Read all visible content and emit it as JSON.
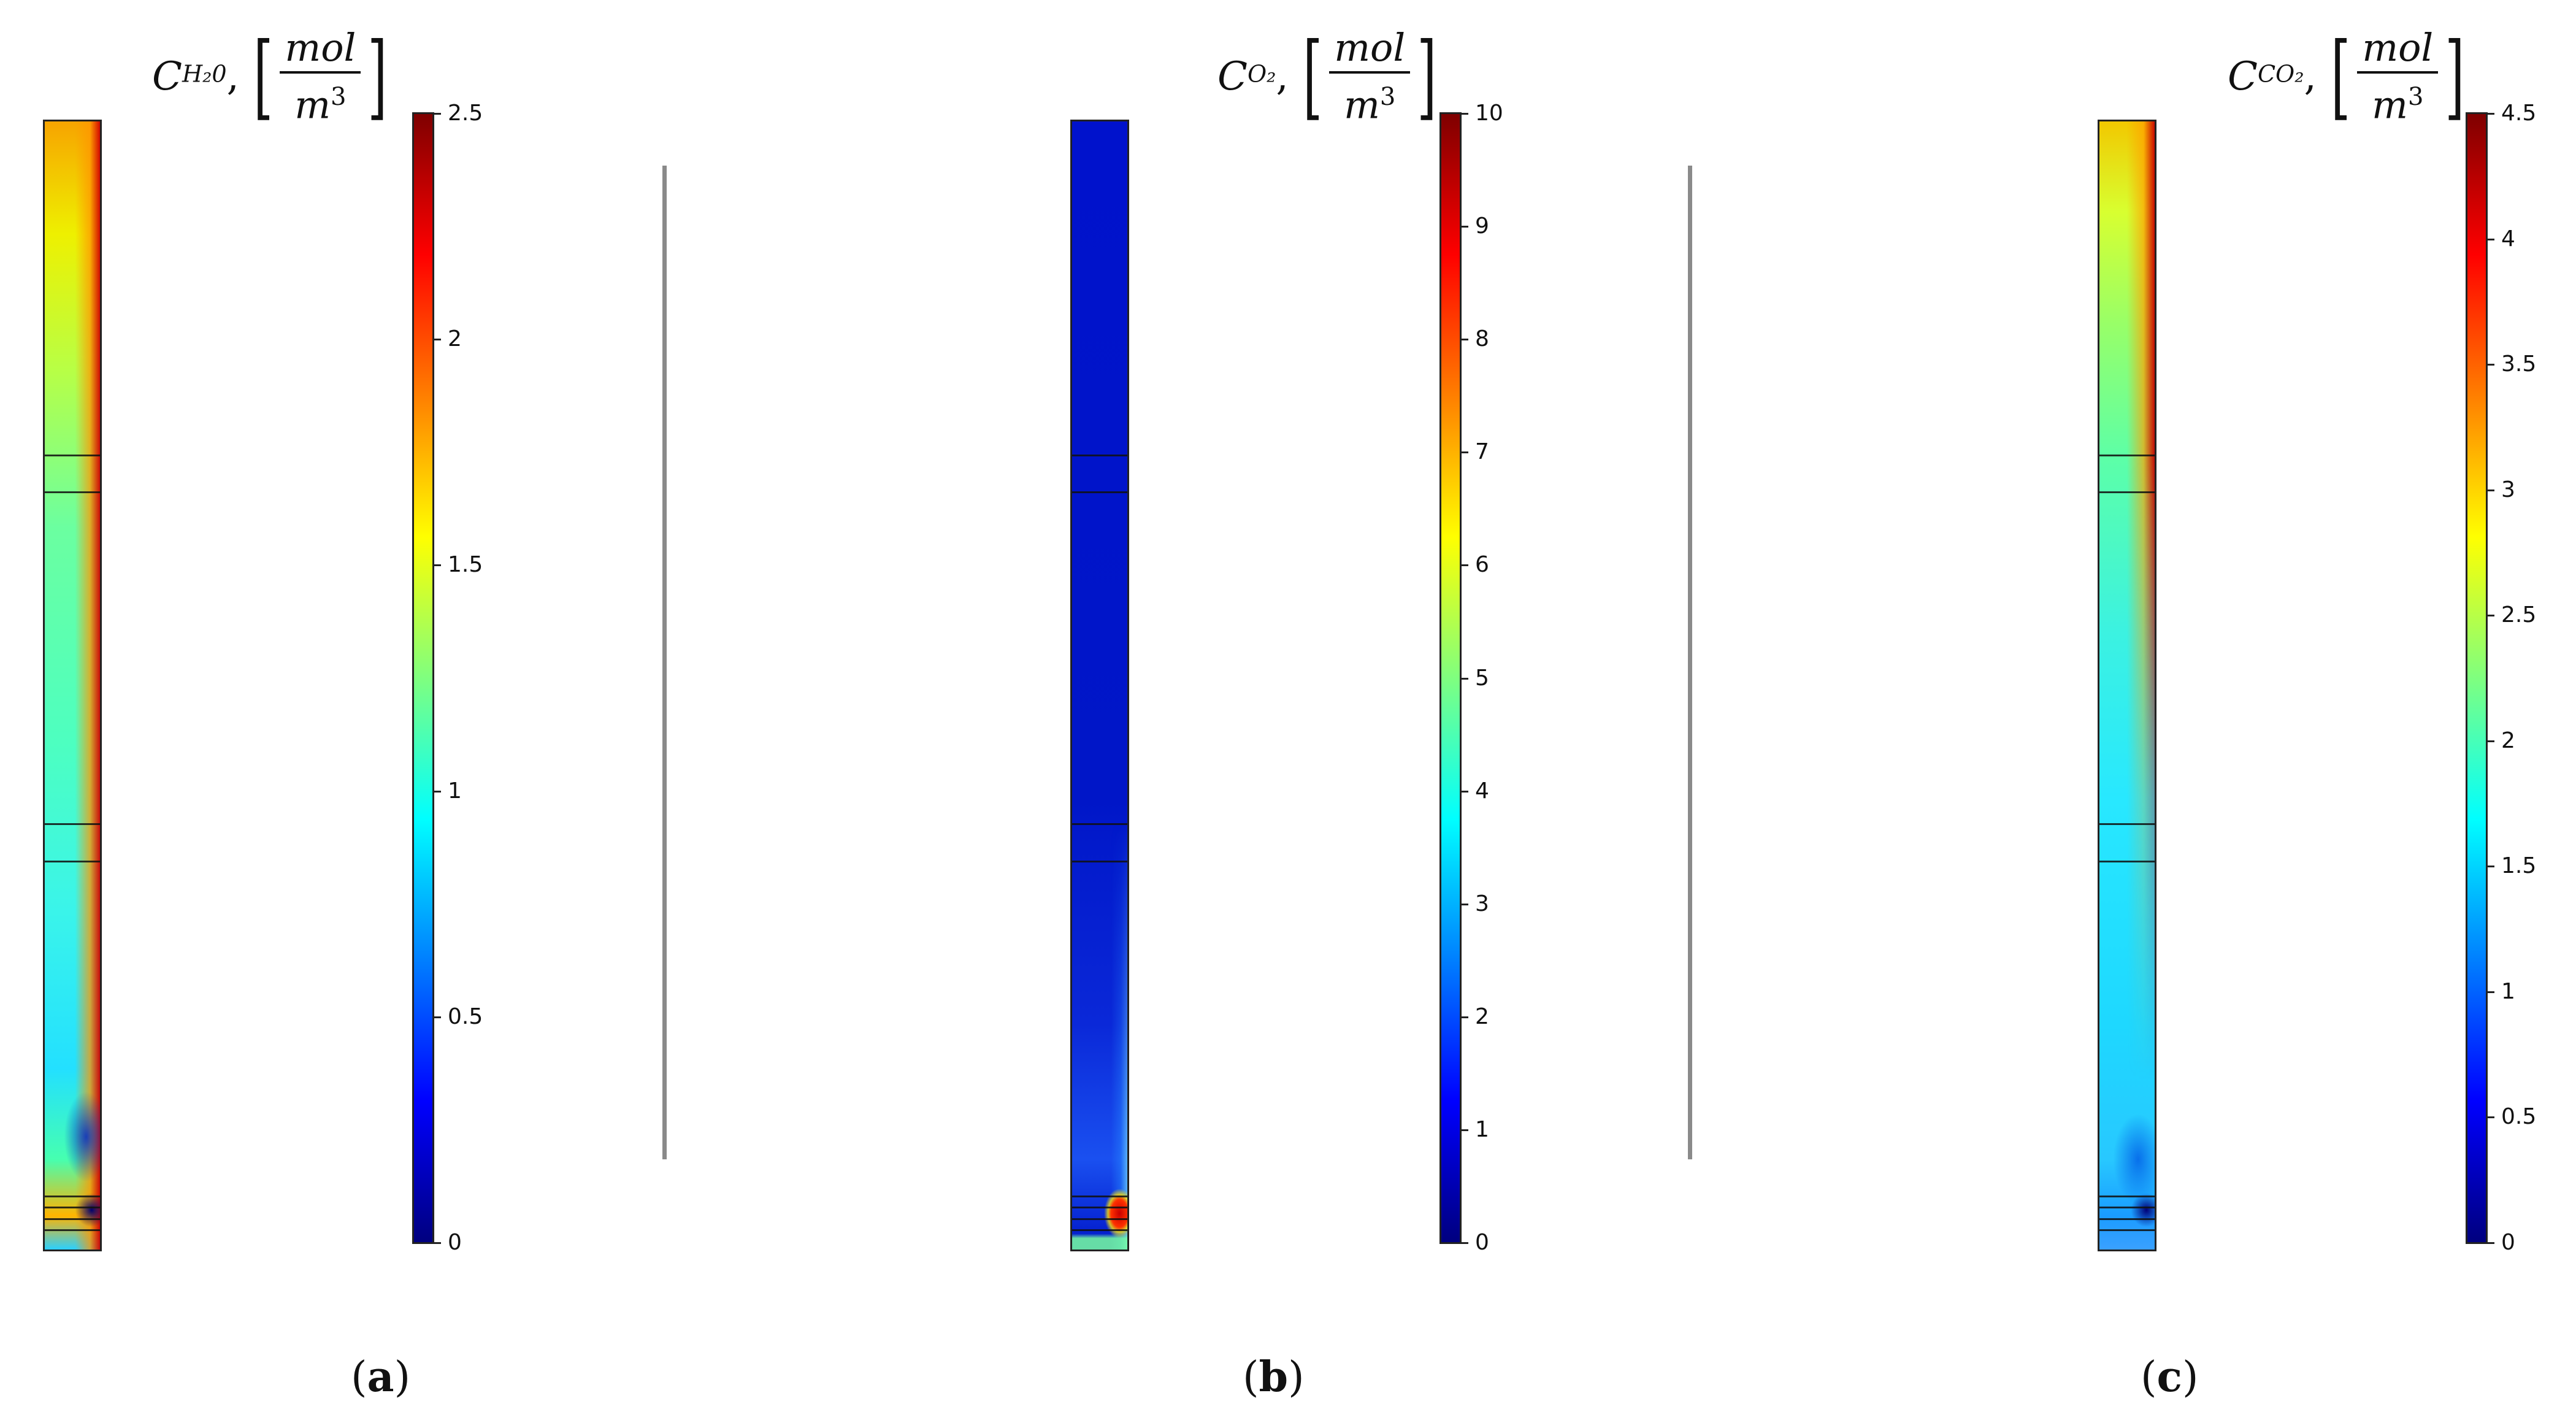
{
  "chart_data": [
    {
      "type": "heatmap",
      "panel_label": "a",
      "title": {
        "symbol": "C",
        "subscript": "H₂0",
        "unit_numerator": "mol",
        "unit_denominator": "m",
        "unit_exponent": "3"
      },
      "colorbar": {
        "range": [
          0,
          2.5
        ],
        "ticks": [
          "0",
          "0.5",
          "1",
          "1.5",
          "2",
          "2.5"
        ],
        "colormap": "jet"
      },
      "field": {
        "background_value": 1.6,
        "interface_lines_fraction": [
          0.295,
          0.328,
          0.622,
          0.655,
          0.952,
          0.962,
          0.972,
          0.982
        ]
      }
    },
    {
      "type": "heatmap",
      "panel_label": "b",
      "title": {
        "symbol": "C",
        "subscript": "O₂",
        "unit_numerator": "mol",
        "unit_denominator": "m",
        "unit_exponent": "3"
      },
      "colorbar": {
        "range": [
          0,
          10
        ],
        "ticks": [
          "0",
          "1",
          "2",
          "3",
          "4",
          "5",
          "6",
          "7",
          "8",
          "9",
          "10"
        ],
        "colormap": "jet"
      },
      "field": {
        "background_value": 0.3,
        "interface_lines_fraction": [
          0.295,
          0.328,
          0.622,
          0.655,
          0.952,
          0.962,
          0.972,
          0.982
        ]
      }
    },
    {
      "type": "heatmap",
      "panel_label": "c",
      "title": {
        "symbol": "C",
        "subscript": "CO₂",
        "unit_numerator": "mol",
        "unit_denominator": "m",
        "unit_exponent": "3"
      },
      "colorbar": {
        "range": [
          0,
          4.5
        ],
        "ticks": [
          "0",
          "0.5",
          "1",
          "1.5",
          "2",
          "2.5",
          "3",
          "3.5",
          "4",
          "4.5"
        ],
        "colormap": "jet"
      },
      "field": {
        "background_value": 1.8,
        "interface_lines_fraction": [
          0.295,
          0.328,
          0.622,
          0.655,
          0.952,
          0.962,
          0.972,
          0.982
        ]
      }
    }
  ],
  "colors": {
    "jet": [
      "#00007f",
      "#0000ff",
      "#007fff",
      "#00ffff",
      "#7fff7f",
      "#ffff00",
      "#ff7f00",
      "#ff0000",
      "#7f0000"
    ],
    "divider": "#8a8a8a"
  }
}
